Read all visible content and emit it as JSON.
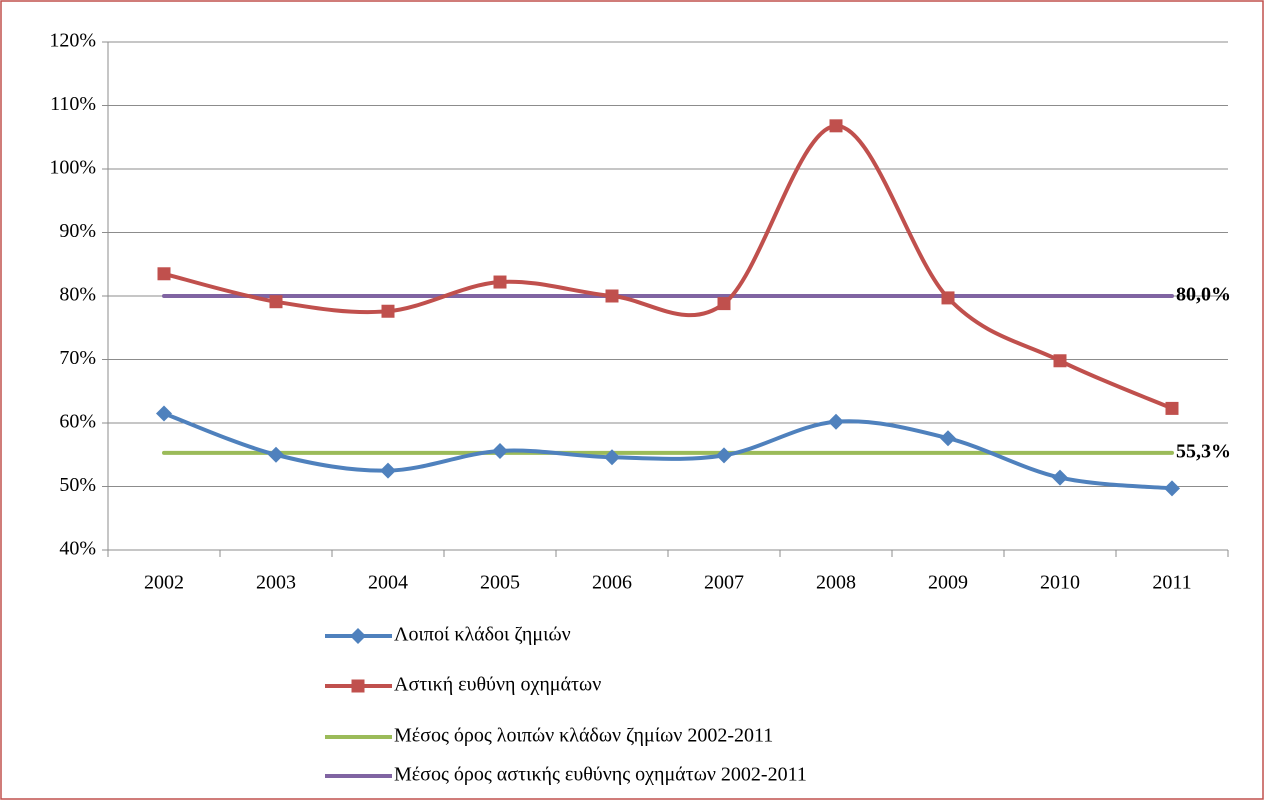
{
  "chart_data": {
    "type": "line",
    "categories": [
      "2002",
      "2003",
      "2004",
      "2005",
      "2006",
      "2007",
      "2008",
      "2009",
      "2010",
      "2011"
    ],
    "series": [
      {
        "name": "Λοιποί κλάδοι ζημιών",
        "color": "#4f81bd",
        "marker": "diamond",
        "values": [
          61.5,
          55.0,
          52.5,
          55.6,
          54.6,
          54.9,
          60.2,
          57.6,
          51.4,
          49.7
        ]
      },
      {
        "name": "Αστική ευθύνη οχημάτων",
        "color": "#c0504d",
        "marker": "square",
        "values": [
          83.5,
          79.1,
          77.6,
          82.2,
          80.0,
          78.8,
          106.8,
          79.7,
          69.8,
          62.3
        ]
      },
      {
        "name": "Μέσος όρος λοιπών κλάδων ζημίων 2002-2011",
        "color": "#9bbb59",
        "values": [
          55.3,
          55.3,
          55.3,
          55.3,
          55.3,
          55.3,
          55.3,
          55.3,
          55.3,
          55.3
        ],
        "value_labels": [
          null,
          null,
          null,
          null,
          null,
          null,
          null,
          null,
          null,
          "55,3%"
        ]
      },
      {
        "name": "Μέσος όρος αστικής ευθύνης οχημάτων 2002-2011",
        "color": "#8064a2",
        "values": [
          80.0,
          80.0,
          80.0,
          80.0,
          80.0,
          80.0,
          80.0,
          80.0,
          80.0,
          80.0
        ],
        "value_labels": [
          null,
          null,
          null,
          null,
          null,
          null,
          null,
          null,
          null,
          "80,0%"
        ]
      }
    ],
    "ylim": [
      40,
      120
    ],
    "yticks": [
      {
        "value": 40,
        "label": "40%"
      },
      {
        "value": 50,
        "label": "50%"
      },
      {
        "value": 60,
        "label": "60%"
      },
      {
        "value": 70,
        "label": "70%"
      },
      {
        "value": 80,
        "label": "80%"
      },
      {
        "value": 90,
        "label": "90%"
      },
      {
        "value": 100,
        "label": "100%"
      },
      {
        "value": 110,
        "label": "110%"
      },
      {
        "value": 120,
        "label": "120%"
      }
    ],
    "grid": true,
    "legend": "bottom"
  }
}
